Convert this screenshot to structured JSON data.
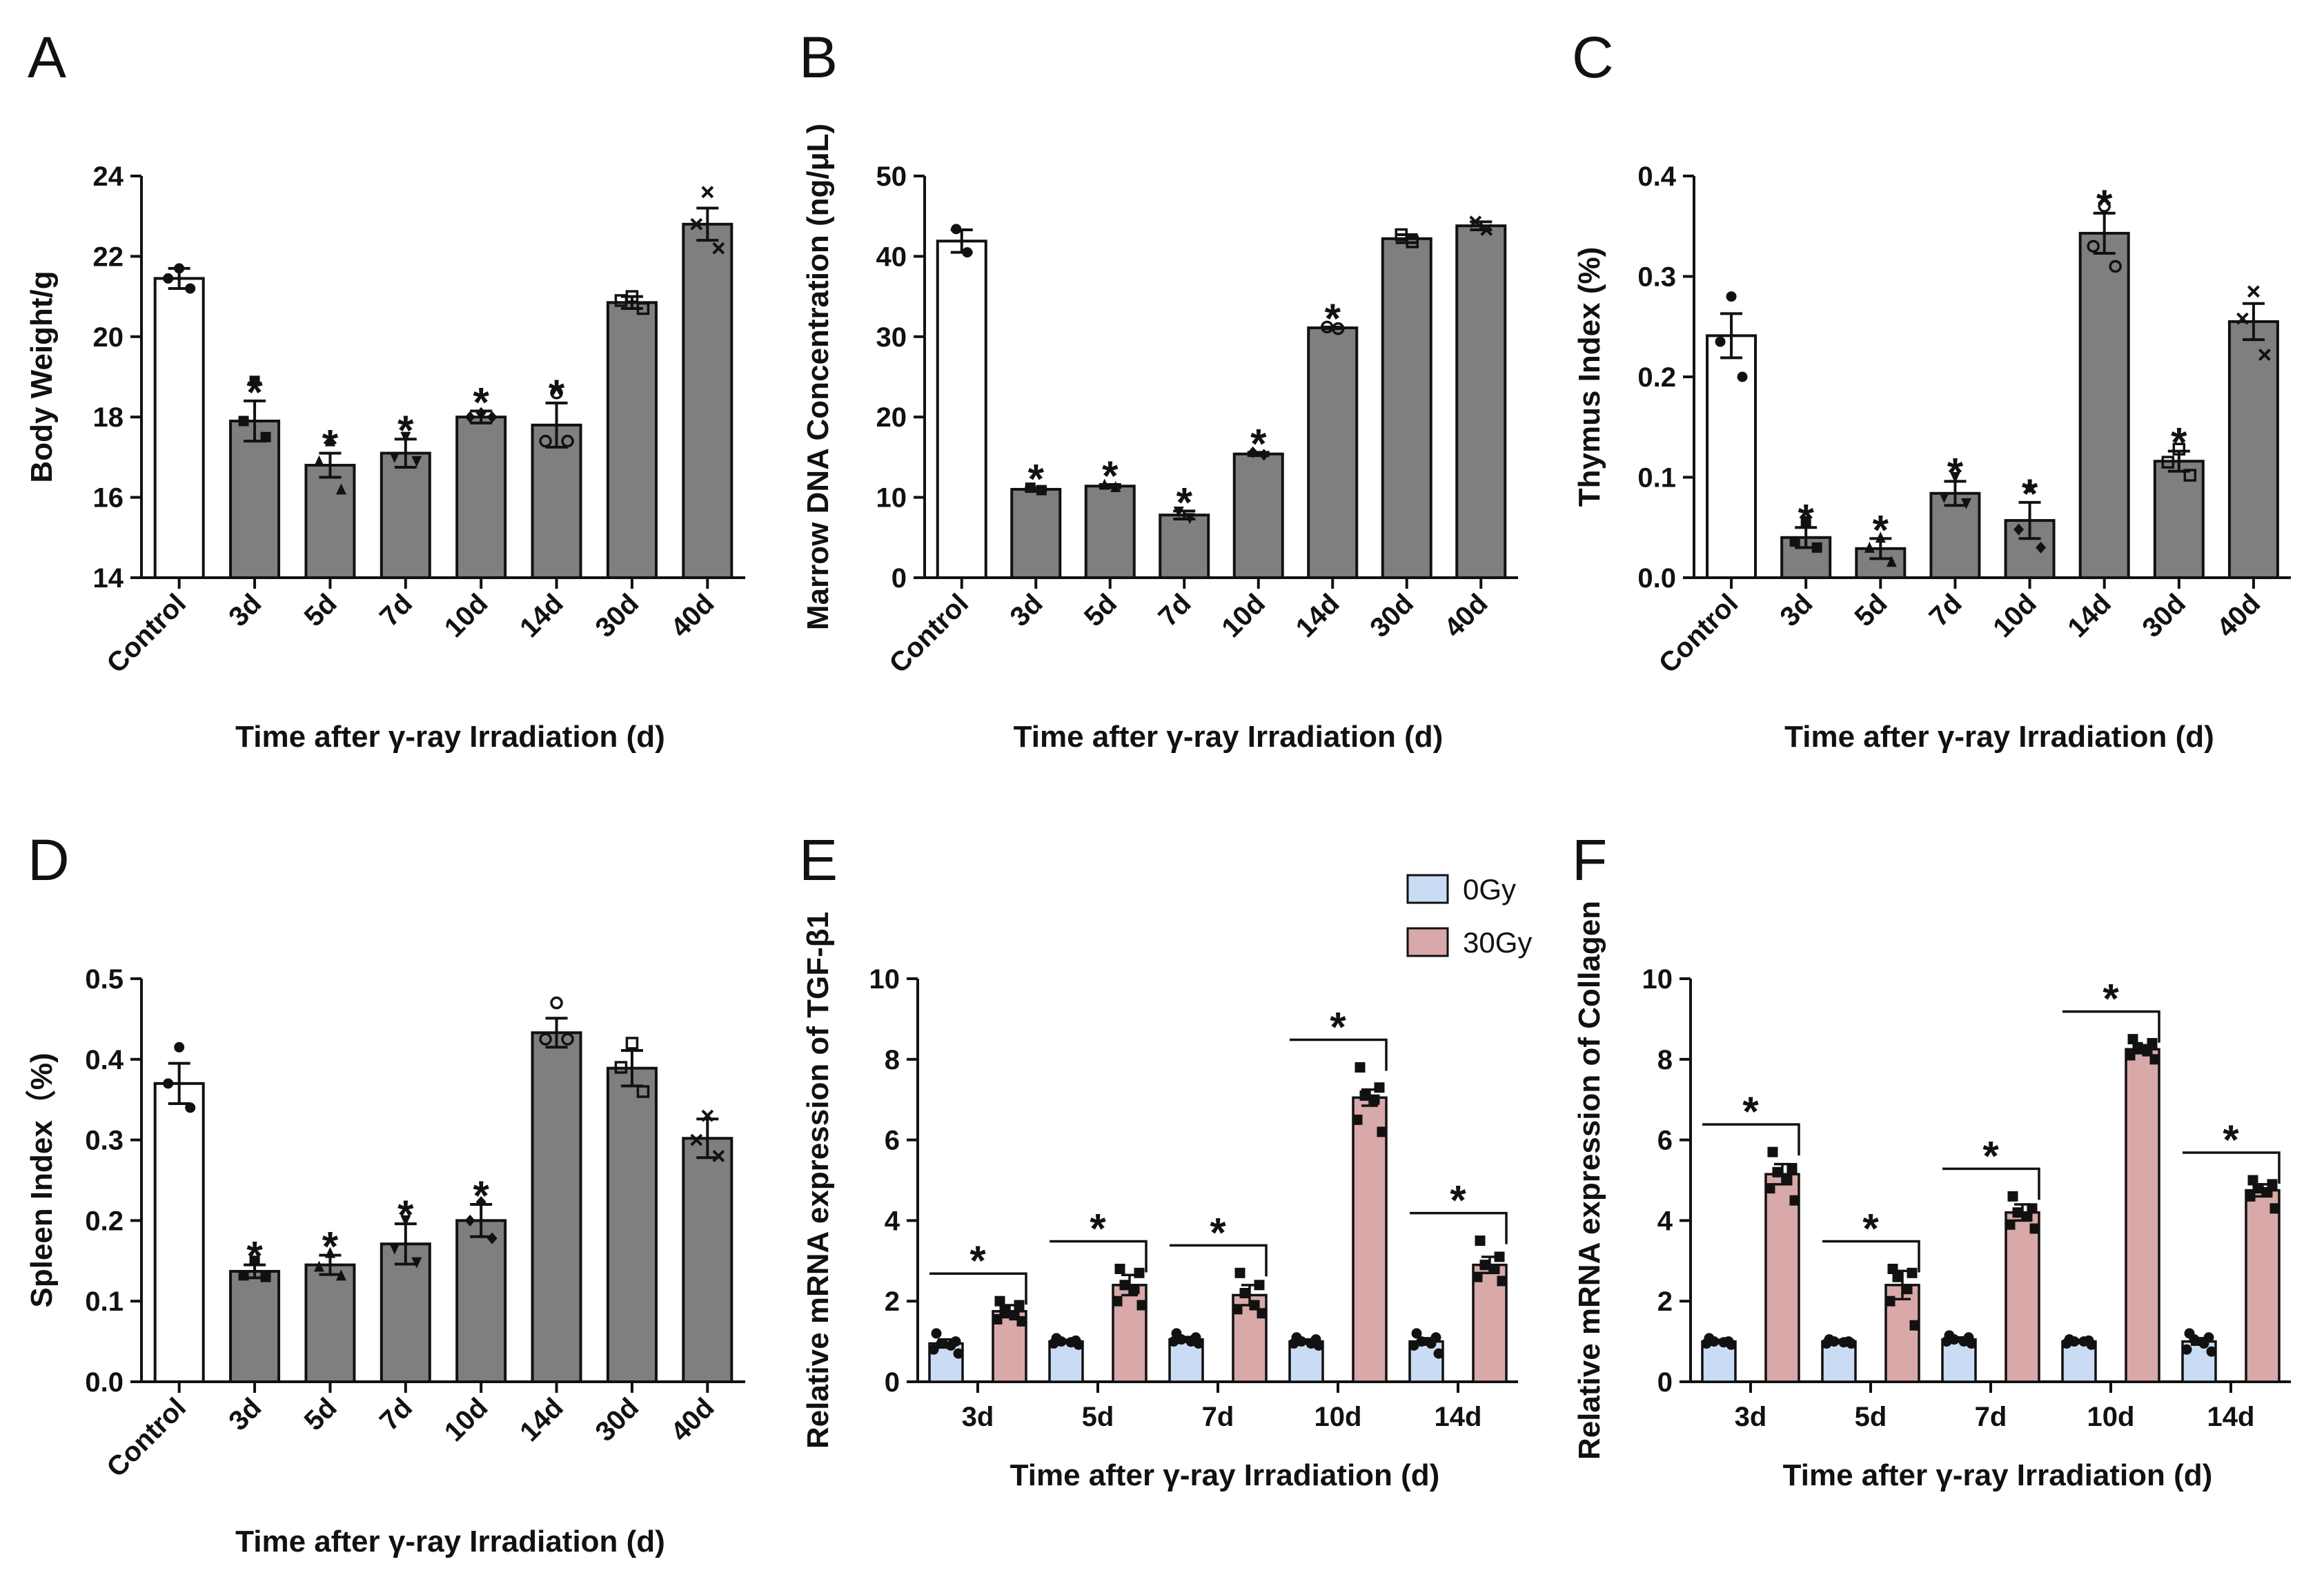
{
  "colors": {
    "control_fill": "#ffffff",
    "treated_fill": "#7f7f7f",
    "gy0_fill": "#c9dcf3",
    "gy30_fill": "#d9a8a8",
    "stroke": "#111111"
  },
  "legend": {
    "items": [
      "0Gy",
      "30Gy"
    ]
  },
  "chart_data": [
    {
      "panel": "A",
      "type": "bar",
      "ylabel": "Body Weight/g",
      "xlabel": "Time after γ-ray Irradiation (d)",
      "categories": [
        "Control",
        "3d",
        "5d",
        "7d",
        "10d",
        "14d",
        "30d",
        "40d"
      ],
      "values": [
        21.45,
        17.9,
        16.8,
        17.1,
        18.0,
        17.8,
        20.85,
        22.8
      ],
      "errors": [
        0.25,
        0.5,
        0.3,
        0.35,
        0.15,
        0.55,
        0.15,
        0.4
      ],
      "points": [
        [
          21.7,
          21.45,
          21.2
        ],
        [
          18.9,
          17.9,
          17.5
        ],
        [
          17.4,
          16.9,
          16.2
        ],
        [
          17.5,
          17.0,
          16.9
        ],
        [
          18.1,
          18.0,
          18.0
        ],
        [
          18.6,
          17.4,
          17.4
        ],
        [
          21.0,
          20.9,
          20.7
        ],
        [
          23.6,
          22.8,
          22.2
        ]
      ],
      "markers": [
        "circle",
        "square",
        "triangle",
        "triangle-down",
        "diamond",
        "circle-open",
        "square-open",
        "x"
      ],
      "significant": [
        false,
        true,
        true,
        true,
        true,
        true,
        false,
        false
      ],
      "significance_label": "*",
      "ylim": [
        14,
        24
      ],
      "yticks": [
        "14",
        "16",
        "18",
        "20",
        "22",
        "24"
      ],
      "ytick_values": [
        14,
        16,
        18,
        20,
        22,
        24
      ]
    },
    {
      "panel": "B",
      "type": "bar",
      "ylabel": "Marrow DNA Concentration (ng/μL)",
      "xlabel": "Time after γ-ray Irradiation (d)",
      "categories": [
        "Control",
        "3d",
        "5d",
        "7d",
        "10d",
        "14d",
        "30d",
        "40d"
      ],
      "values": [
        41.9,
        11.0,
        11.4,
        7.8,
        15.4,
        31.1,
        42.2,
        43.8
      ],
      "errors": [
        1.4,
        0.2,
        0.2,
        0.5,
        0.2,
        0.1,
        0.5,
        0.5
      ],
      "points": [
        [
          43.4,
          40.5
        ],
        [
          11.2,
          10.9
        ],
        [
          11.6,
          11.3
        ],
        [
          8.2,
          7.4
        ],
        [
          15.6,
          15.3
        ],
        [
          31.2,
          31.0
        ],
        [
          42.7,
          41.8
        ],
        [
          44.3,
          43.3
        ]
      ],
      "markers": [
        "circle",
        "square",
        "triangle",
        "triangle-down",
        "diamond",
        "circle-open",
        "square-open",
        "x"
      ],
      "significant": [
        false,
        true,
        true,
        true,
        true,
        true,
        false,
        false
      ],
      "significance_label": "*",
      "ylim": [
        0,
        50
      ],
      "yticks": [
        "0",
        "10",
        "20",
        "30",
        "40",
        "50"
      ],
      "ytick_values": [
        0,
        10,
        20,
        30,
        40,
        50
      ]
    },
    {
      "panel": "C",
      "type": "bar",
      "ylabel": "Thymus Index (%)",
      "xlabel": "Time after γ-ray Irradiation (d)",
      "categories": [
        "Control",
        "3d",
        "5d",
        "7d",
        "10d",
        "14d",
        "30d",
        "40d"
      ],
      "values": [
        0.241,
        0.04,
        0.029,
        0.084,
        0.057,
        0.343,
        0.116,
        0.255
      ],
      "errors": [
        0.022,
        0.01,
        0.01,
        0.012,
        0.018,
        0.02,
        0.01,
        0.018
      ],
      "points": [
        [
          0.28,
          0.235,
          0.2
        ],
        [
          0.056,
          0.036,
          0.03
        ],
        [
          0.04,
          0.03,
          0.016
        ],
        [
          0.1,
          0.08,
          0.074
        ],
        [
          0.09,
          0.048,
          0.03
        ],
        [
          0.37,
          0.33,
          0.31
        ],
        [
          0.128,
          0.115,
          0.102
        ],
        [
          0.285,
          0.258,
          0.222
        ]
      ],
      "markers": [
        "circle",
        "square",
        "triangle",
        "triangle-down",
        "diamond",
        "circle-open",
        "square-open",
        "x"
      ],
      "significant": [
        false,
        true,
        true,
        true,
        true,
        true,
        true,
        false
      ],
      "significance_label": "*",
      "ylim": [
        0,
        0.4
      ],
      "yticks": [
        "0.0",
        "0.1",
        "0.2",
        "0.3",
        "0.4"
      ],
      "ytick_values": [
        0,
        0.1,
        0.2,
        0.3,
        0.4
      ]
    },
    {
      "panel": "D",
      "type": "bar",
      "ylabel": "Spleen Index（%)",
      "xlabel": "Time after γ-ray Irradiation (d)",
      "categories": [
        "Control",
        "3d",
        "5d",
        "7d",
        "10d",
        "14d",
        "30d",
        "40d"
      ],
      "values": [
        0.37,
        0.137,
        0.145,
        0.171,
        0.2,
        0.433,
        0.389,
        0.302
      ],
      "errors": [
        0.025,
        0.008,
        0.012,
        0.025,
        0.02,
        0.018,
        0.022,
        0.024
      ],
      "points": [
        [
          0.415,
          0.37,
          0.34
        ],
        [
          0.15,
          0.132,
          0.13
        ],
        [
          0.16,
          0.143,
          0.132
        ],
        [
          0.2,
          0.165,
          0.148
        ],
        [
          0.223,
          0.2,
          0.178
        ],
        [
          0.47,
          0.425,
          0.425
        ],
        [
          0.42,
          0.39,
          0.36
        ],
        [
          0.33,
          0.3,
          0.28
        ]
      ],
      "markers": [
        "circle",
        "square",
        "triangle",
        "triangle-down",
        "diamond",
        "circle-open",
        "square-open",
        "x"
      ],
      "significant": [
        false,
        true,
        true,
        true,
        true,
        false,
        false,
        false
      ],
      "significance_label": "*",
      "ylim": [
        0,
        0.5
      ],
      "yticks": [
        "0.0",
        "0.1",
        "0.2",
        "0.3",
        "0.4",
        "0.5"
      ],
      "ytick_values": [
        0,
        0.1,
        0.2,
        0.3,
        0.4,
        0.5
      ]
    },
    {
      "panel": "E",
      "type": "bar",
      "ylabel": "Relative mRNA expression of TGF-β1",
      "xlabel": "Time after γ-ray Irradiation (d)",
      "categories": [
        "3d",
        "5d",
        "7d",
        "10d",
        "14d"
      ],
      "series": [
        {
          "name": "0Gy",
          "values": [
            0.95,
            1.0,
            1.05,
            1.0,
            1.0
          ],
          "errors": [
            0.1,
            0.04,
            0.06,
            0.05,
            0.08
          ],
          "points": [
            [
              1.2,
              1.0,
              0.95,
              0.9,
              0.8,
              0.7
            ],
            [
              1.08,
              1.02,
              1.0,
              0.98,
              0.95,
              0.92
            ],
            [
              1.2,
              1.1,
              1.05,
              1.0,
              1.0,
              0.95
            ],
            [
              1.1,
              1.05,
              1.0,
              0.95,
              0.95,
              0.9
            ],
            [
              1.2,
              1.1,
              1.0,
              0.95,
              0.9,
              0.7
            ]
          ]
        },
        {
          "name": "30Gy",
          "values": [
            1.75,
            2.4,
            2.15,
            7.05,
            2.9
          ],
          "errors": [
            0.15,
            0.25,
            0.25,
            0.2,
            0.2
          ],
          "points": [
            [
              2.0,
              1.9,
              1.75,
              1.65,
              1.55,
              1.5
            ],
            [
              2.8,
              2.7,
              2.4,
              2.3,
              2.0,
              1.9
            ],
            [
              2.7,
              2.4,
              2.2,
              1.9,
              1.8,
              1.7
            ],
            [
              7.8,
              7.3,
              7.1,
              7.0,
              6.5,
              6.2
            ],
            [
              3.5,
              3.1,
              2.9,
              2.8,
              2.6,
              2.5
            ]
          ]
        }
      ],
      "significant": [
        true,
        true,
        true,
        true,
        true
      ],
      "significance_label": "*",
      "ylim": [
        0,
        10
      ],
      "yticks": [
        "0",
        "2",
        "4",
        "6",
        "8",
        "10"
      ],
      "ytick_values": [
        0,
        2,
        4,
        6,
        8,
        10
      ]
    },
    {
      "panel": "F",
      "type": "bar",
      "ylabel": "Relative mRNA expression of Collagen",
      "xlabel": "Time after γ-ray Irradiation (d)",
      "categories": [
        "3d",
        "5d",
        "7d",
        "10d",
        "14d"
      ],
      "series": [
        {
          "name": "0Gy",
          "values": [
            1.0,
            1.0,
            1.05,
            1.0,
            1.0
          ],
          "errors": [
            0.04,
            0.04,
            0.05,
            0.04,
            0.08
          ],
          "points": [
            [
              1.08,
              1.0,
              1.0,
              0.98,
              0.95,
              0.92
            ],
            [
              1.05,
              1.0,
              1.0,
              0.98,
              0.95,
              0.95
            ],
            [
              1.15,
              1.1,
              1.05,
              1.0,
              1.0,
              0.95
            ],
            [
              1.05,
              1.02,
              1.0,
              1.0,
              0.95,
              0.92
            ],
            [
              1.2,
              1.1,
              1.05,
              0.95,
              0.8,
              0.75
            ]
          ]
        },
        {
          "name": "30Gy",
          "values": [
            5.15,
            2.4,
            4.2,
            8.25,
            4.75
          ],
          "errors": [
            0.25,
            0.35,
            0.2,
            0.1,
            0.15
          ],
          "points": [
            [
              5.7,
              5.3,
              5.2,
              5.0,
              4.8,
              4.5
            ],
            [
              2.8,
              2.7,
              2.6,
              2.3,
              2.0,
              1.4
            ],
            [
              4.6,
              4.3,
              4.2,
              4.1,
              3.9,
              3.8
            ],
            [
              8.5,
              8.4,
              8.3,
              8.2,
              8.1,
              8.0
            ],
            [
              5.0,
              4.9,
              4.8,
              4.7,
              4.6,
              4.3
            ]
          ]
        }
      ],
      "significant": [
        true,
        true,
        true,
        true,
        true
      ],
      "significance_label": "*",
      "ylim": [
        0,
        10
      ],
      "yticks": [
        "0",
        "2",
        "4",
        "6",
        "8",
        "10"
      ],
      "ytick_values": [
        0,
        2,
        4,
        6,
        8,
        10
      ]
    }
  ]
}
